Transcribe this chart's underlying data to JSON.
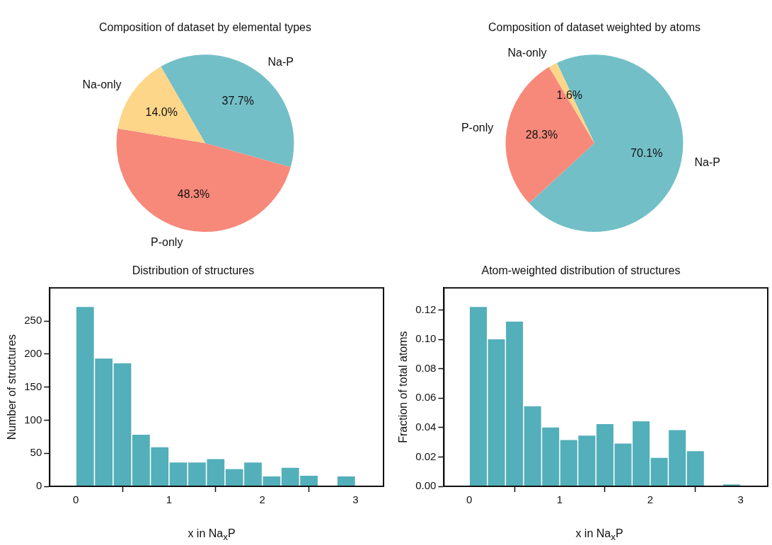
{
  "chart_data": [
    {
      "type": "pie",
      "title": "Composition of dataset by elemental types",
      "categories": [
        "Na-P",
        "P-only",
        "Na-only"
      ],
      "values": [
        37.7,
        48.3,
        14.0
      ],
      "colors": [
        "#72bfc7",
        "#f7897a",
        "#fdd68a"
      ],
      "value_labels": [
        "37.7%",
        "48.3%",
        "14.0%"
      ],
      "legend": false
    },
    {
      "type": "pie",
      "title": "Composition of dataset weighted by atoms",
      "categories": [
        "Na-P",
        "P-only",
        "Na-only"
      ],
      "values": [
        70.1,
        28.3,
        1.6
      ],
      "colors": [
        "#72bfc7",
        "#f7897a",
        "#fdd68a"
      ],
      "value_labels": [
        "70.1%",
        "28.3%",
        "1.6%"
      ],
      "legend": false
    },
    {
      "type": "histogram",
      "title": "Distribution of structures",
      "xlabel": "x in Na$_{x}$P",
      "ylabel": "Number of structures",
      "bins": [
        0,
        0.2,
        0.4,
        0.6,
        0.8,
        1.0,
        1.2,
        1.4,
        1.6,
        1.8,
        2.0,
        2.2,
        2.4,
        2.6,
        2.8,
        3.0
      ],
      "values": [
        271,
        193,
        186,
        78,
        59,
        36,
        36,
        41,
        26,
        36,
        15,
        28,
        16,
        0,
        15
      ],
      "color": "#53afba",
      "xlim": [
        -0.28,
        3.3
      ],
      "ylim": [
        0,
        300
      ],
      "xticks": [
        0,
        1,
        2,
        3
      ],
      "yticks": [
        0,
        50,
        100,
        150,
        200,
        250
      ],
      "grid": false,
      "legend": false
    },
    {
      "type": "histogram",
      "title": "Atom-weighted distribution of structures",
      "xlabel": "x in Na$_{x}$P",
      "ylabel": "Fraction of total atoms",
      "bins": [
        0,
        0.2,
        0.4,
        0.6,
        0.8,
        1.0,
        1.2,
        1.4,
        1.6,
        1.8,
        2.0,
        2.2,
        2.4,
        2.6,
        2.8,
        3.0
      ],
      "values": [
        0.122,
        0.1,
        0.112,
        0.0545,
        0.04,
        0.0315,
        0.0345,
        0.0423,
        0.0291,
        0.0442,
        0.0194,
        0.0382,
        0.0239,
        0,
        0.0013
      ],
      "color": "#53afba",
      "xlim": [
        -0.28,
        3.3
      ],
      "ylim": [
        0,
        0.135
      ],
      "xticks": [
        0,
        1,
        2,
        3
      ],
      "yticks": [
        {
          "value": 0,
          "label": "0.00"
        },
        {
          "value": 0.02,
          "label": "0.02"
        },
        {
          "value": 0.04,
          "label": "0.04"
        },
        {
          "value": 0.06,
          "label": "0.06"
        },
        {
          "value": 0.08,
          "label": "0.08"
        },
        {
          "value": 0.1,
          "label": "0.10"
        },
        {
          "value": 0.12,
          "label": "0.12"
        }
      ],
      "grid": false,
      "legend": false
    }
  ]
}
